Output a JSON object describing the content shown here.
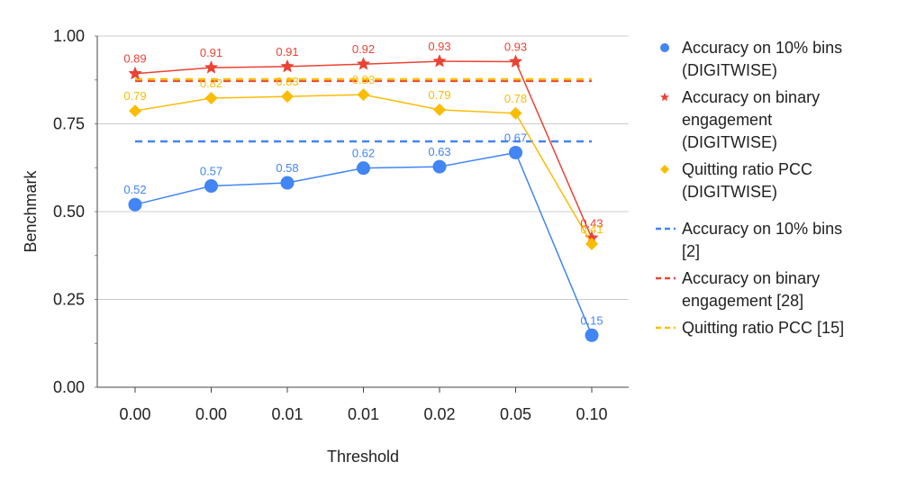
{
  "chart_data": {
    "type": "line",
    "title": "",
    "xlabel": "Threshold",
    "ylabel": "Benchmark",
    "ylim": [
      0,
      1
    ],
    "yticks": [
      "0.00",
      "0.25",
      "0.50",
      "0.75",
      "1.00"
    ],
    "ytick_values": [
      0,
      0.25,
      0.5,
      0.75,
      1.0
    ],
    "categories": [
      "0.00",
      "0.00",
      "0.01",
      "0.01",
      "0.02",
      "0.05",
      "0.10"
    ],
    "grid": "horizontal",
    "legend_position": "right",
    "series": [
      {
        "name": "Accuracy on 10% bins (DIGITWISE)",
        "legend_lines": [
          "Accuracy on 10% bins",
          "(DIGITWISE)"
        ],
        "color": "#4285F4",
        "marker": "circle",
        "values": [
          0.52,
          0.573,
          0.582,
          0.624,
          0.628,
          0.668,
          0.148
        ],
        "labels": [
          "0.52",
          "0.57",
          "0.58",
          "0.62",
          "0.63",
          "0.67",
          "0.15"
        ]
      },
      {
        "name": "Accuracy on binary engagement (DIGITWISE)",
        "legend_lines": [
          "Accuracy on binary",
          "engagement",
          "(DIGITWISE)"
        ],
        "color": "#EA4335",
        "marker": "star",
        "values": [
          0.893,
          0.91,
          0.913,
          0.92,
          0.928,
          0.927,
          0.425
        ],
        "labels": [
          "0.89",
          "0.91",
          "0.91",
          "0.92",
          "0.93",
          "0.93",
          "0.43"
        ]
      },
      {
        "name": "Quitting ratio PCC (DIGITWISE)",
        "legend_lines": [
          "Quitting ratio PCC",
          "(DIGITWISE)"
        ],
        "color": "#FBBC04",
        "marker": "diamond",
        "values": [
          0.787,
          0.823,
          0.828,
          0.833,
          0.79,
          0.78,
          0.408
        ],
        "labels": [
          "0.79",
          "0.82",
          "0.83",
          "0.83",
          "0.79",
          "0.78",
          "0.41"
        ]
      }
    ],
    "reference_lines": [
      {
        "name": "Accuracy on 10% bins [2]",
        "legend_lines": [
          "Accuracy on 10% bins",
          "[2]"
        ],
        "color": "#4285F4",
        "value": 0.7
      },
      {
        "name": "Accuracy on binary engagement [28]",
        "legend_lines": [
          "Accuracy on binary",
          "engagement [28]"
        ],
        "color": "#EA4335",
        "value": 0.872
      },
      {
        "name": "Quitting ratio PCC [15]",
        "legend_lines": [
          "Quitting ratio PCC [15]"
        ],
        "color": "#FBBC04",
        "value": 0.877
      }
    ]
  }
}
